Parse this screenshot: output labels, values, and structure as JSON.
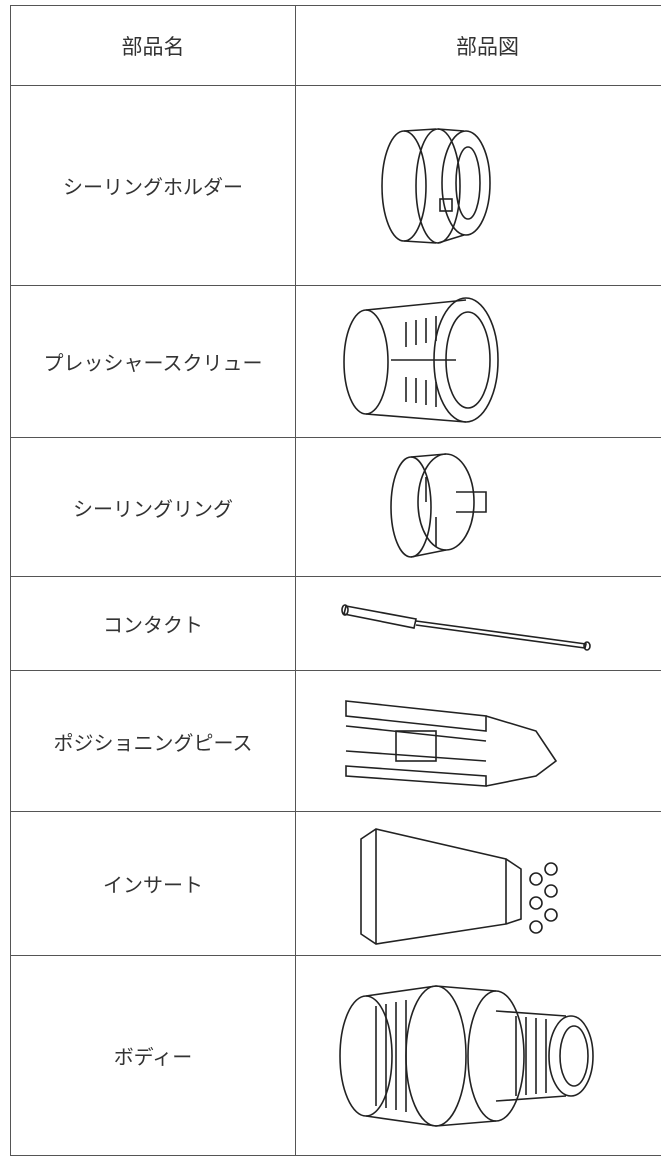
{
  "table": {
    "columns": [
      "部品名",
      "部品図"
    ],
    "rows": [
      "シーリングホルダー",
      "プレッシャースクリュー",
      "シーリングリング",
      "コンタクト",
      "ポジショニングピース",
      "インサート",
      "ボディー"
    ]
  }
}
